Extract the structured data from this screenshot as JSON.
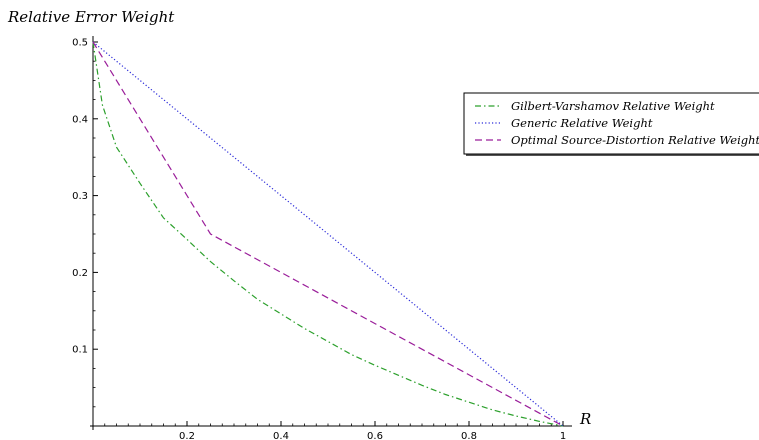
{
  "chart_data": {
    "type": "line",
    "title": "",
    "ylabel": "Relative Error Weight",
    "xlabel": "R",
    "xlim": [
      0,
      1
    ],
    "ylim": [
      0,
      0.5
    ],
    "xticks": [
      0.2,
      0.4,
      0.6,
      0.8,
      1
    ],
    "xtick_labels": [
      "0.2",
      "0.4",
      "0.6",
      "0.8",
      "1"
    ],
    "yticks": [
      0.1,
      0.2,
      0.3,
      0.4,
      0.5
    ],
    "ytick_labels": [
      "0.1",
      "0.2",
      "0.3",
      "0.4",
      "0.5"
    ],
    "grid": false,
    "legend_position": "top-right",
    "series": [
      {
        "name": "Gilbert-Varshamov Relative Weight",
        "color": "#2ca02c",
        "style": "dash-dot",
        "x": [
          0,
          0.02,
          0.05,
          0.1,
          0.15,
          0.2,
          0.25,
          0.3,
          0.35,
          0.4,
          0.45,
          0.5,
          0.55,
          0.6,
          0.65,
          0.7,
          0.75,
          0.8,
          0.85,
          0.9,
          0.95,
          1
        ],
        "values": [
          0.5,
          0.418,
          0.363,
          0.316,
          0.271,
          0.243,
          0.214,
          0.189,
          0.165,
          0.146,
          0.127,
          0.11,
          0.093,
          0.079,
          0.066,
          0.053,
          0.041,
          0.031,
          0.021,
          0.013,
          0.006,
          0
        ]
      },
      {
        "name": "Generic Relative Weight",
        "color": "#2b2bd9",
        "style": "dotted",
        "x": [
          0,
          1
        ],
        "values": [
          0.5,
          0
        ]
      },
      {
        "name": "Optimal Source-Distortion Relative Weight",
        "color": "#9a1e9a",
        "style": "dashed",
        "x": [
          0,
          0.25,
          1
        ],
        "values": [
          0.5,
          0.25,
          0
        ]
      }
    ]
  }
}
